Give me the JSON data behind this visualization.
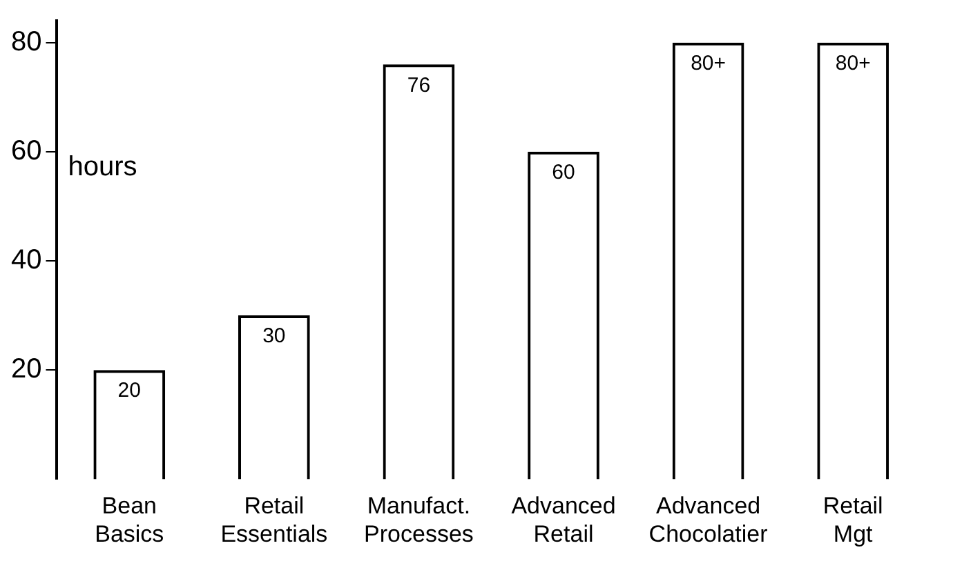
{
  "chart_data": {
    "type": "bar",
    "ylabel": "hours",
    "categories": [
      "Bean Basics",
      "Retail Essentials",
      "Manufact. Processes",
      "Advanced Retail",
      "Advanced Chocolatier",
      "Retail Mgt"
    ],
    "values": [
      20,
      30,
      76,
      60,
      80,
      80
    ],
    "value_labels": [
      "20",
      "30",
      "76",
      "60",
      "80+",
      "80+"
    ],
    "color": "#000000",
    "ylim": [
      0,
      84
    ],
    "yticks": [
      20,
      40,
      60,
      80
    ],
    "grid": false,
    "legend": false
  }
}
